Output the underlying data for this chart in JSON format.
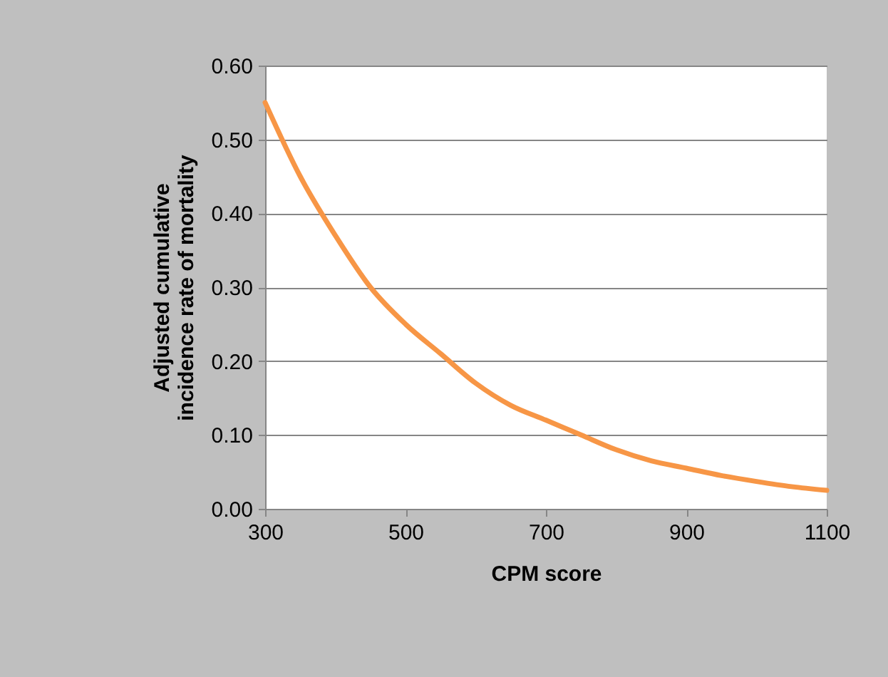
{
  "chart_data": {
    "type": "line",
    "xlabel": "CPM score",
    "ylabel": "Adjusted cumulative\nincidence rate of mortality",
    "x": [
      300,
      350,
      400,
      450,
      500,
      550,
      600,
      650,
      700,
      750,
      800,
      850,
      900,
      950,
      1000,
      1050,
      1100
    ],
    "series": [
      {
        "color": "#f79646",
        "values": [
          0.55,
          0.45,
          0.37,
          0.3,
          0.25,
          0.21,
          0.17,
          0.14,
          0.12,
          0.1,
          0.08,
          0.065,
          0.055,
          0.045,
          0.037,
          0.03,
          0.025
        ]
      }
    ],
    "xlim": [
      300,
      1100
    ],
    "xticks": [
      300,
      500,
      700,
      900,
      1100
    ],
    "ylim": [
      0,
      0.6
    ],
    "yticks": [
      {
        "value": 0,
        "label": "0.00"
      },
      {
        "value": 0.1,
        "label": "0.10"
      },
      {
        "value": 0.2,
        "label": "0.20"
      },
      {
        "value": 0.3,
        "label": "0.30"
      },
      {
        "value": 0.4,
        "label": "0.40"
      },
      {
        "value": 0.5,
        "label": "0.50"
      },
      {
        "value": 0.6,
        "label": "0.60"
      }
    ],
    "grid": "y",
    "marker": "none",
    "line_style": "solid"
  }
}
